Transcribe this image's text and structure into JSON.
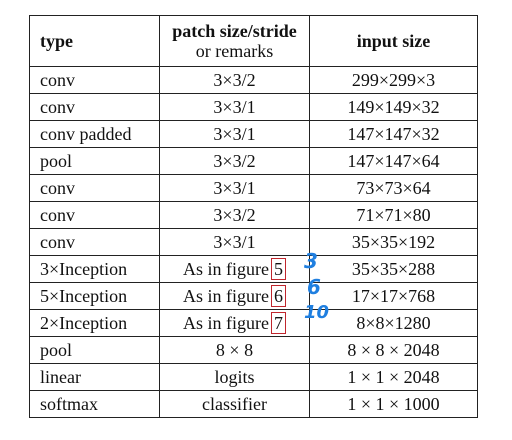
{
  "table": {
    "headers": {
      "type": "type",
      "patch_line1": "patch size/stride",
      "patch_line2": "or remarks",
      "input": "input size"
    },
    "rows": [
      {
        "type": "conv",
        "patch": "3×3/2",
        "input": "299×299×3"
      },
      {
        "type": "conv",
        "patch": "3×3/1",
        "input": "149×149×32"
      },
      {
        "type": "conv padded",
        "patch": "3×3/1",
        "input": "147×147×32"
      },
      {
        "type": "pool",
        "patch": "3×3/2",
        "input": "147×147×64"
      },
      {
        "type": "conv",
        "patch": "3×3/1",
        "input": "73×73×64"
      },
      {
        "type": "conv",
        "patch": "3×3/2",
        "input": "71×71×80"
      },
      {
        "type": "conv",
        "patch": "3×3/1",
        "input": "35×35×192"
      },
      {
        "type": "3×Inception",
        "patch_prefix": "As in figure",
        "patch_num": "5",
        "input": "35×35×288"
      },
      {
        "type": "5×Inception",
        "patch_prefix": "As in figure",
        "patch_num": "6",
        "input": "17×17×768"
      },
      {
        "type": "2×Inception",
        "patch_prefix": "As in figure",
        "patch_num": "7",
        "input": "8×8×1280"
      },
      {
        "type": "pool",
        "patch": "8 × 8",
        "input": "8 × 8 × 2048"
      },
      {
        "type": "linear",
        "patch": "logits",
        "input": "1 × 1 × 2048"
      },
      {
        "type": "softmax",
        "patch": "classifier",
        "input": "1 × 1 × 1000"
      }
    ]
  },
  "annotations": {
    "note_row7": "3",
    "note_row8": "6",
    "note_row9": "10"
  },
  "colors": {
    "box_outline": "#c0262d",
    "handwriting": "#1f7fe0"
  }
}
